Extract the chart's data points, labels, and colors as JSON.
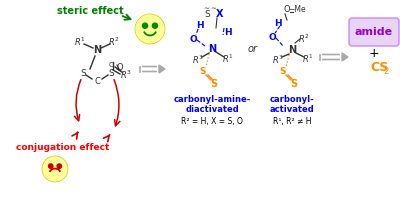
{
  "bg_color": "#ffffff",
  "steric_effect": "steric effect",
  "steric_color": "#008000",
  "conjugation_effect": "conjugation effect",
  "conjugation_color": "#ff0000",
  "amide_text": "amide",
  "amide_color": "#9900cc",
  "amide_bg": "#e8d5f5",
  "amide_border": "#cc88ff",
  "cs2_text": "CS",
  "cs2_sub": "2",
  "cs2_color": "#ff8c00",
  "plus_color": "#000000",
  "label1": "carbonyl-amine-",
  "label2": "diactivated",
  "label3": "carbonyl-",
  "label4": "activated",
  "label_color": "#0000ff",
  "sublabel1": "R² = H, X = S, O",
  "sublabel2": "R¹, R² ≠ H",
  "sublabel_color": "#000000",
  "or_text": "or",
  "blue": "#0000ff",
  "orange": "#ff8c00",
  "dark": "#333333",
  "red": "#cc0000",
  "green": "#008800",
  "arrow_gray": "#aaaaaa",
  "smiley_yellow": "#ffff99"
}
